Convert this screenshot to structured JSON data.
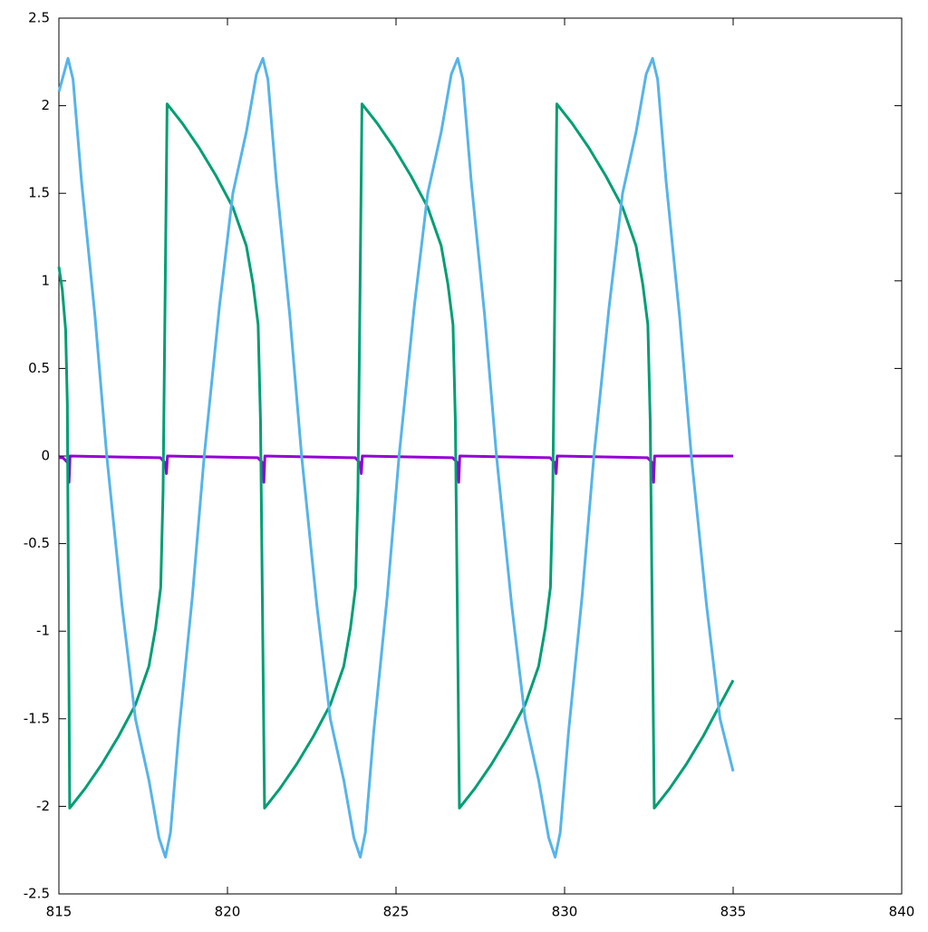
{
  "chart_data": {
    "type": "line",
    "xlim": [
      815,
      840
    ],
    "xticks": [
      815,
      820,
      825,
      830,
      835,
      840
    ],
    "ylim": [
      -2.5,
      2.5
    ],
    "yticks": [
      -2.5,
      -2,
      -1.5,
      -1,
      -0.5,
      0,
      0.5,
      1,
      1.5,
      2,
      2.5
    ],
    "series": [
      {
        "color": "#9400d3",
        "x": [
          815,
          815.12,
          815.27,
          815.3,
          815.33,
          818.01,
          818.16,
          818.19,
          818.22,
          820.9,
          821.05,
          821.08,
          821.11,
          823.79,
          823.94,
          823.97,
          824.0,
          826.68,
          826.83,
          826.86,
          826.89,
          829.57,
          829.72,
          829.75,
          829.78,
          832.46,
          832.61,
          832.64,
          832.67,
          835
        ],
        "values": [
          -0.01,
          -0.01,
          -0.04,
          -0.15,
          0,
          -0.01,
          -0.04,
          -0.1,
          0,
          -0.01,
          -0.04,
          -0.15,
          0,
          -0.01,
          -0.04,
          -0.1,
          0,
          -0.01,
          -0.04,
          -0.15,
          0,
          -0.01,
          -0.04,
          -0.1,
          0,
          -0.01,
          -0.04,
          -0.15,
          0,
          0
        ]
      },
      {
        "color": "#009e73",
        "x": [
          815,
          815.1,
          815.2,
          815.25,
          815.32,
          815.77,
          816.27,
          816.77,
          817.27,
          817.67,
          817.87,
          818.02,
          818.09,
          818.21,
          818.66,
          819.16,
          819.66,
          820.16,
          820.56,
          820.76,
          820.91,
          820.98,
          821.1,
          821.55,
          822.05,
          822.55,
          823.05,
          823.45,
          823.65,
          823.8,
          823.87,
          823.99,
          824.44,
          824.94,
          825.44,
          825.94,
          826.34,
          826.54,
          826.69,
          826.76,
          826.88,
          827.33,
          827.83,
          828.33,
          828.83,
          829.23,
          829.43,
          829.58,
          829.65,
          829.77,
          830.22,
          830.72,
          831.22,
          831.72,
          832.12,
          832.32,
          832.47,
          832.54,
          832.66,
          833.11,
          833.61,
          834.11,
          834.61,
          835
        ],
        "values": [
          1.08,
          0.95,
          0.72,
          0.3,
          -2.01,
          -1.9,
          -1.76,
          -1.6,
          -1.42,
          -1.2,
          -0.98,
          -0.75,
          -0.2,
          2.01,
          1.9,
          1.76,
          1.6,
          1.42,
          1.2,
          0.98,
          0.75,
          0.2,
          -2.01,
          -1.9,
          -1.76,
          -1.6,
          -1.42,
          -1.2,
          -0.98,
          -0.75,
          -0.2,
          2.01,
          1.9,
          1.76,
          1.6,
          1.42,
          1.2,
          0.98,
          0.75,
          0.2,
          -2.01,
          -1.9,
          -1.76,
          -1.6,
          -1.42,
          -1.2,
          -0.98,
          -0.75,
          -0.2,
          2.01,
          1.9,
          1.76,
          1.6,
          1.42,
          1.2,
          0.98,
          0.75,
          0.2,
          -2.01,
          -1.9,
          -1.76,
          -1.6,
          -1.42,
          -1.28
        ]
      },
      {
        "color": "#56b4e9",
        "x": [
          815,
          815.27,
          815.42,
          815.67,
          816.07,
          816.42,
          816.87,
          817.27,
          817.67,
          817.97,
          818.16,
          818.31,
          818.56,
          818.96,
          819.31,
          819.76,
          820.16,
          820.56,
          820.86,
          821.05,
          821.2,
          821.45,
          821.85,
          822.2,
          822.65,
          823.05,
          823.45,
          823.75,
          823.94,
          824.09,
          824.34,
          824.74,
          825.09,
          825.54,
          825.94,
          826.34,
          826.64,
          826.83,
          826.98,
          827.23,
          827.63,
          827.98,
          828.43,
          828.83,
          829.23,
          829.53,
          829.72,
          829.87,
          830.12,
          830.52,
          830.87,
          831.32,
          831.72,
          832.12,
          832.42,
          832.61,
          832.76,
          833.01,
          833.41,
          833.76,
          834.21,
          834.61,
          835
        ],
        "values": [
          2.08,
          2.27,
          2.15,
          1.57,
          0.8,
          0,
          -0.85,
          -1.5,
          -1.85,
          -2.18,
          -2.29,
          -2.15,
          -1.57,
          -0.8,
          0,
          0.85,
          1.5,
          1.85,
          2.18,
          2.27,
          2.15,
          1.57,
          0.8,
          0,
          -0.85,
          -1.5,
          -1.85,
          -2.18,
          -2.29,
          -2.15,
          -1.57,
          -0.8,
          0,
          0.85,
          1.5,
          1.85,
          2.18,
          2.27,
          2.15,
          1.57,
          0.8,
          0,
          -0.85,
          -1.5,
          -1.85,
          -2.18,
          -2.29,
          -2.15,
          -1.57,
          -0.8,
          0,
          0.85,
          1.5,
          1.85,
          2.18,
          2.27,
          2.15,
          1.57,
          0.8,
          0,
          -0.85,
          -1.5,
          -1.8
        ]
      }
    ]
  }
}
